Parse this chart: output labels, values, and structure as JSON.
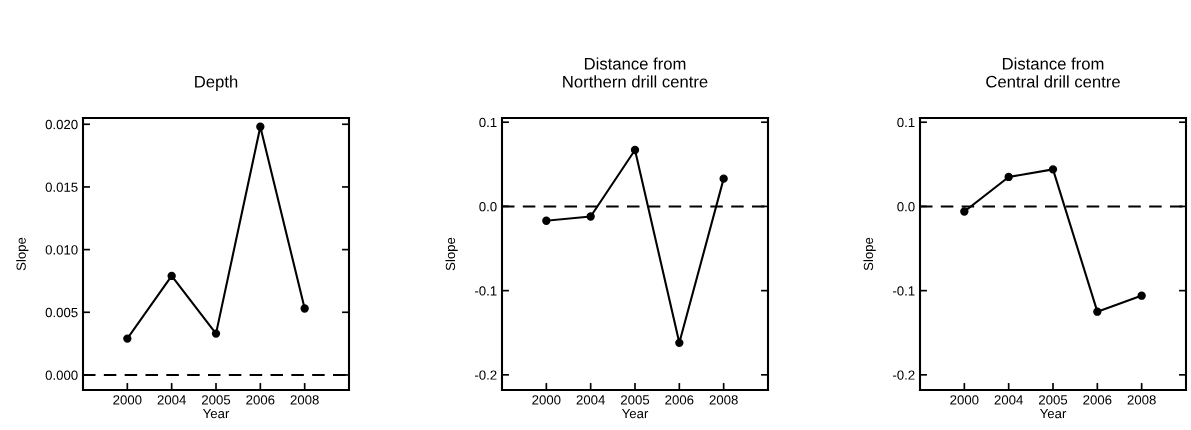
{
  "chart_data": [
    {
      "type": "line",
      "title": "Depth",
      "xlabel": "Year",
      "ylabel": "Slope",
      "categories": [
        "2000",
        "2004",
        "2005",
        "2006",
        "2008"
      ],
      "values": [
        0.0029,
        0.0079,
        0.0033,
        0.0198,
        0.0053
      ],
      "color": "#000000",
      "marker": "circle",
      "line_style": "solid",
      "ylim": [
        -0.0012,
        0.0205
      ],
      "yticks": [
        {
          "value": 0,
          "label": "0.000"
        },
        {
          "value": 0.005,
          "label": "0.005"
        },
        {
          "value": 0.01,
          "label": "0.010"
        },
        {
          "value": 0.015,
          "label": "0.015"
        },
        {
          "value": 0.02,
          "label": "0.020"
        }
      ],
      "ref_lines": [
        {
          "axis": "y",
          "value": 0,
          "color": "#000000",
          "line_style": "dashed"
        }
      ],
      "grid": false,
      "legend": false
    },
    {
      "type": "line",
      "title": "Distance from\nNorthern drill centre",
      "xlabel": "Year",
      "ylabel": "Slope",
      "categories": [
        "2000",
        "2004",
        "2005",
        "2006",
        "2008"
      ],
      "values": [
        -0.017,
        -0.012,
        0.067,
        -0.162,
        0.033
      ],
      "color": "#000000",
      "marker": "circle",
      "line_style": "solid",
      "ylim": [
        -0.218,
        0.105
      ],
      "yticks": [
        {
          "value": -0.2,
          "label": "-0.2"
        },
        {
          "value": -0.1,
          "label": "-0.1"
        },
        {
          "value": 0,
          "label": "0.0"
        },
        {
          "value": 0.1,
          "label": "0.1"
        }
      ],
      "ref_lines": [
        {
          "axis": "y",
          "value": 0,
          "color": "#000000",
          "line_style": "dashed"
        }
      ],
      "grid": false,
      "legend": false
    },
    {
      "type": "line",
      "title": "Distance from\nCentral drill centre",
      "xlabel": "Year",
      "ylabel": "Slope",
      "categories": [
        "2000",
        "2004",
        "2005",
        "2006",
        "2008"
      ],
      "values": [
        -0.006,
        0.035,
        0.044,
        -0.125,
        -0.106
      ],
      "color": "#000000",
      "marker": "circle",
      "line_style": "solid",
      "ylim": [
        -0.218,
        0.105
      ],
      "yticks": [
        {
          "value": -0.2,
          "label": "-0.2"
        },
        {
          "value": -0.1,
          "label": "-0.1"
        },
        {
          "value": 0,
          "label": "0.0"
        },
        {
          "value": 0.1,
          "label": "0.1"
        }
      ],
      "ref_lines": [
        {
          "axis": "y",
          "value": 0,
          "color": "#000000",
          "line_style": "dashed"
        }
      ],
      "grid": false,
      "legend": false
    }
  ]
}
